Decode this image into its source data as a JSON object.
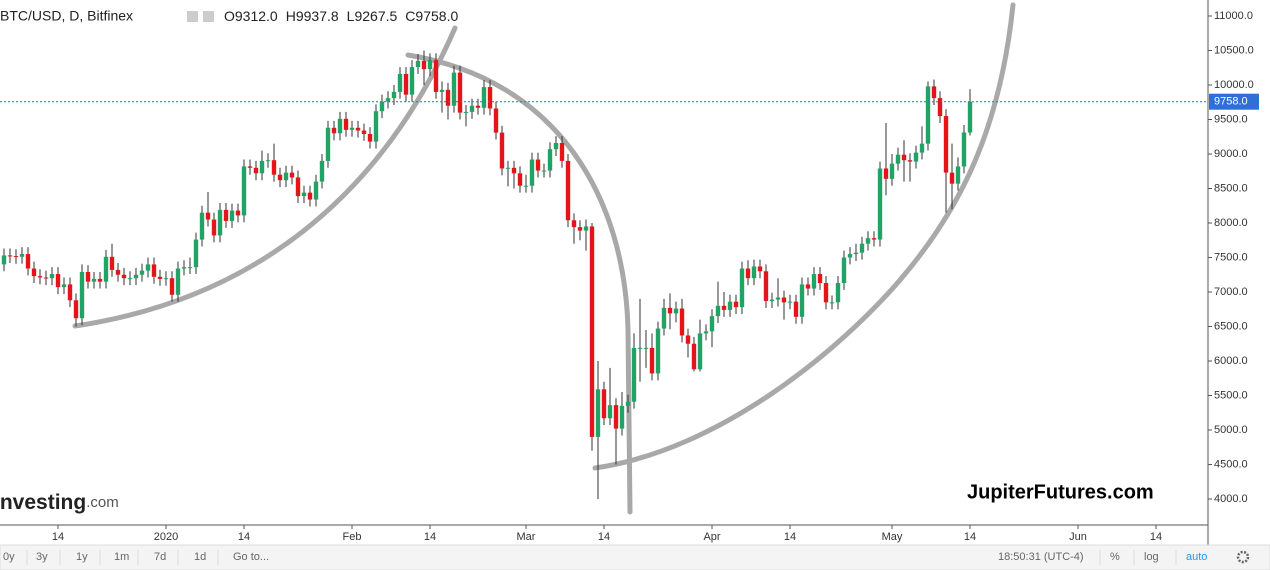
{
  "chart_data": {
    "type": "candlestick",
    "title": "BTC/USD, D, Bitfinex",
    "legend": [
      {
        "key": "O",
        "label": "9312.0"
      },
      {
        "key": "H",
        "label": "9937.8"
      },
      {
        "key": "L",
        "label": "9267.5"
      },
      {
        "key": "C",
        "label": "9758.0"
      }
    ],
    "up_color": "#21a366",
    "down_color": "#e3151a",
    "x": [
      "2019-12-05",
      "2019-12-06",
      "2019-12-07",
      "2019-12-08",
      "2019-12-09",
      "2019-12-10",
      "2019-12-11",
      "2019-12-12",
      "2019-12-13",
      "2019-12-14",
      "2019-12-15",
      "2019-12-16",
      "2019-12-17",
      "2019-12-18",
      "2019-12-19",
      "2019-12-20",
      "2019-12-21",
      "2019-12-22",
      "2019-12-23",
      "2019-12-24",
      "2019-12-25",
      "2019-12-26",
      "2019-12-27",
      "2019-12-28",
      "2019-12-29",
      "2019-12-30",
      "2019-12-31",
      "2020-01-01",
      "2020-01-02",
      "2020-01-03",
      "2020-01-04",
      "2020-01-05",
      "2020-01-06",
      "2020-01-07",
      "2020-01-08",
      "2020-01-09",
      "2020-01-10",
      "2020-01-11",
      "2020-01-12",
      "2020-01-13",
      "2020-01-14",
      "2020-01-15",
      "2020-01-16",
      "2020-01-17",
      "2020-01-18",
      "2020-01-19",
      "2020-01-20",
      "2020-01-21",
      "2020-01-22",
      "2020-01-23",
      "2020-01-24",
      "2020-01-25",
      "2020-01-26",
      "2020-01-27",
      "2020-01-28",
      "2020-01-29",
      "2020-01-30",
      "2020-01-31",
      "2020-02-01",
      "2020-02-02",
      "2020-02-03",
      "2020-02-04",
      "2020-02-05",
      "2020-02-06",
      "2020-02-07",
      "2020-02-08",
      "2020-02-09",
      "2020-02-10",
      "2020-02-11",
      "2020-02-12",
      "2020-02-13",
      "2020-02-14",
      "2020-02-15",
      "2020-02-16",
      "2020-02-17",
      "2020-02-18",
      "2020-02-19",
      "2020-02-20",
      "2020-02-21",
      "2020-02-22",
      "2020-02-23",
      "2020-02-24",
      "2020-02-25",
      "2020-02-26",
      "2020-02-27",
      "2020-02-28",
      "2020-02-29",
      "2020-03-01",
      "2020-03-02",
      "2020-03-03",
      "2020-03-04",
      "2020-03-05",
      "2020-03-06",
      "2020-03-07",
      "2020-03-08",
      "2020-03-09",
      "2020-03-10",
      "2020-03-11",
      "2020-03-12",
      "2020-03-13",
      "2020-03-14",
      "2020-03-15",
      "2020-03-16",
      "2020-03-17",
      "2020-03-18",
      "2020-03-19",
      "2020-03-20",
      "2020-03-21",
      "2020-03-22",
      "2020-03-23",
      "2020-03-24",
      "2020-03-25",
      "2020-03-26",
      "2020-03-27",
      "2020-03-28",
      "2020-03-29",
      "2020-03-30",
      "2020-03-31",
      "2020-04-01",
      "2020-04-02",
      "2020-04-03",
      "2020-04-04",
      "2020-04-05",
      "2020-04-06",
      "2020-04-07",
      "2020-04-08",
      "2020-04-09",
      "2020-04-10",
      "2020-04-11",
      "2020-04-12",
      "2020-04-13",
      "2020-04-14",
      "2020-04-15",
      "2020-04-16",
      "2020-04-17",
      "2020-04-18",
      "2020-04-19",
      "2020-04-20",
      "2020-04-21",
      "2020-04-22",
      "2020-04-23",
      "2020-04-24",
      "2020-04-25",
      "2020-04-26",
      "2020-04-27",
      "2020-04-28",
      "2020-04-29",
      "2020-04-30",
      "2020-05-01",
      "2020-05-02",
      "2020-05-03",
      "2020-05-04",
      "2020-05-05",
      "2020-05-06",
      "2020-05-07",
      "2020-05-08",
      "2020-05-09",
      "2020-05-10",
      "2020-05-11",
      "2020-05-12",
      "2020-05-13",
      "2020-05-14"
    ],
    "open": [
      7400,
      7530,
      7520,
      7510,
      7550,
      7340,
      7230,
      7210,
      7200,
      7260,
      7070,
      7110,
      6880,
      6620,
      7290,
      7150,
      7190,
      7150,
      7510,
      7320,
      7250,
      7200,
      7200,
      7250,
      7310,
      7400,
      7220,
      7190,
      7200,
      6960,
      7340,
      7360,
      7360,
      7760,
      8150,
      8050,
      7820,
      8190,
      8030,
      8180,
      8110,
      8820,
      8800,
      8720,
      8900,
      8910,
      8700,
      8620,
      8730,
      8660,
      8390,
      8440,
      8340,
      8600,
      8900,
      9380,
      9300,
      9510,
      9350,
      9380,
      9340,
      9290,
      9180,
      9620,
      9760,
      9810,
      9900,
      10160,
      9860,
      10260,
      10350,
      10230,
      10360,
      9900,
      9930,
      9700,
      10180,
      9600,
      9610,
      9700,
      9670,
      9970,
      9660,
      9310,
      8790,
      8800,
      8720,
      8540,
      8540,
      8920,
      8760,
      8760,
      9070,
      9160,
      8900,
      8040,
      7940,
      7890,
      7950,
      4900,
      5590,
      5170,
      5360,
      5020,
      5350,
      5410,
      6190,
      6190,
      6190,
      5820,
      6470,
      6770,
      6690,
      6760,
      6370,
      6250,
      5880,
      6400,
      6430,
      6650,
      6800,
      6740,
      6860,
      6780,
      7340,
      7200,
      7370,
      7300,
      6870,
      6890,
      6920,
      6850,
      6860,
      6640,
      7110,
      7050,
      7260,
      7130,
      6850,
      6850,
      7130,
      7500,
      7550,
      7570,
      7700,
      7780,
      7760,
      8790,
      8640,
      8860,
      8990,
      8910,
      8890,
      9020,
      9150,
      9980,
      9810,
      9550,
      8730,
      8570,
      8820,
      9312
    ],
    "high": [
      7630,
      7630,
      7620,
      7650,
      7650,
      7440,
      7330,
      7310,
      7360,
      7360,
      7210,
      7210,
      6980,
      7400,
      7390,
      7290,
      7290,
      7610,
      7700,
      7420,
      7350,
      7300,
      7350,
      7410,
      7500,
      7500,
      7320,
      7300,
      7300,
      7440,
      7460,
      7500,
      7860,
      8250,
      8450,
      8150,
      8290,
      8290,
      8280,
      8280,
      8920,
      8920,
      8900,
      9050,
      9010,
      9150,
      8800,
      8830,
      8830,
      8760,
      8540,
      8540,
      8700,
      9000,
      9480,
      9480,
      9610,
      9610,
      9480,
      9480,
      9440,
      9390,
      9720,
      9860,
      9910,
      10000,
      10260,
      10260,
      10360,
      10450,
      10500,
      10460,
      10460,
      10050,
      10030,
      10280,
      10280,
      9710,
      9800,
      9800,
      10070,
      10070,
      9760,
      9410,
      8900,
      8900,
      8820,
      8700,
      9020,
      9020,
      8860,
      9170,
      9260,
      9260,
      9000,
      8140,
      8040,
      8050,
      8000,
      6000,
      5700,
      5900,
      5460,
      5550,
      5510,
      6400,
      6900,
      6450,
      6400,
      6570,
      6900,
      6980,
      6860,
      6900,
      6470,
      6350,
      6600,
      6530,
      6750,
      7150,
      7000,
      6960,
      6960,
      7440,
      7460,
      7470,
      7470,
      7400,
      6990,
      7200,
      7020,
      6960,
      6960,
      7210,
      7210,
      7360,
      7360,
      7230,
      6950,
      7230,
      7600,
      7650,
      7700,
      7800,
      7880,
      7880,
      8890,
      9450,
      9000,
      9090,
      9200,
      9010,
      9120,
      9400,
      10050,
      10080,
      9910,
      9650,
      9150,
      8950,
      9420,
      9937.8
    ],
    "low": [
      7300,
      7420,
      7410,
      7410,
      7240,
      7130,
      7110,
      7100,
      7100,
      6970,
      6970,
      6780,
      6500,
      6520,
      7050,
      7050,
      7050,
      7050,
      7220,
      7150,
      7100,
      7100,
      7100,
      7150,
      7210,
      7120,
      7090,
      7090,
      6860,
      6860,
      7240,
      7260,
      7260,
      7660,
      7950,
      7720,
      7720,
      7930,
      7930,
      8010,
      8010,
      8700,
      8620,
      8620,
      8800,
      8600,
      8520,
      8520,
      8560,
      8290,
      8290,
      8240,
      8240,
      8500,
      8800,
      9200,
      9200,
      9250,
      9250,
      9240,
      9190,
      9080,
      9080,
      9520,
      9660,
      9710,
      9800,
      9760,
      9760,
      10160,
      10000,
      10130,
      9800,
      9600,
      9500,
      9600,
      9500,
      9400,
      9510,
      9570,
      9570,
      9560,
      9210,
      8690,
      8530,
      8500,
      8440,
      8440,
      8440,
      8660,
      8660,
      8660,
      8970,
      8800,
      7940,
      7700,
      7750,
      7600,
      4700,
      4000,
      5070,
      5070,
      4500,
      4920,
      5250,
      5310,
      5700,
      5900,
      5720,
      5720,
      6370,
      6460,
      6560,
      6270,
      6050,
      5850,
      5850,
      6300,
      6200,
      6550,
      6640,
      6640,
      6680,
      6680,
      7100,
      7100,
      7200,
      6770,
      6770,
      6790,
      6600,
      6750,
      6540,
      6540,
      6950,
      6950,
      7030,
      6750,
      6750,
      6750,
      7030,
      7400,
      7450,
      7470,
      7600,
      7660,
      7660,
      8400,
      8540,
      8760,
      8600,
      8600,
      8790,
      8920,
      9050,
      9710,
      9450,
      8150,
      8200,
      8470,
      8720,
      9267.5
    ],
    "close": [
      7530,
      7520,
      7510,
      7550,
      7340,
      7230,
      7210,
      7200,
      7260,
      7070,
      7110,
      6880,
      6620,
      7290,
      7150,
      7190,
      7150,
      7510,
      7320,
      7250,
      7200,
      7200,
      7250,
      7310,
      7400,
      7220,
      7190,
      7200,
      6960,
      7340,
      7360,
      7360,
      7760,
      8150,
      8050,
      7820,
      8190,
      8030,
      8180,
      8110,
      8820,
      8800,
      8720,
      8900,
      8910,
      8700,
      8620,
      8730,
      8660,
      8390,
      8440,
      8340,
      8600,
      8900,
      9380,
      9300,
      9510,
      9350,
      9380,
      9340,
      9290,
      9180,
      9620,
      9760,
      9810,
      9900,
      10160,
      9860,
      10260,
      10350,
      10230,
      10360,
      9900,
      9930,
      9700,
      10180,
      9600,
      9610,
      9700,
      9670,
      9970,
      9660,
      9310,
      8790,
      8800,
      8720,
      8540,
      8540,
      8920,
      8760,
      8760,
      9070,
      9160,
      8900,
      8040,
      7940,
      7890,
      7950,
      4900,
      5590,
      5170,
      5360,
      5020,
      5350,
      5410,
      6190,
      6190,
      6190,
      5820,
      6470,
      6770,
      6690,
      6760,
      6370,
      6250,
      5880,
      6400,
      6430,
      6650,
      6800,
      6740,
      6860,
      6780,
      7340,
      7200,
      7370,
      7300,
      6870,
      6890,
      6920,
      6850,
      6860,
      6640,
      7110,
      7050,
      7260,
      7130,
      6850,
      6850,
      7130,
      7500,
      7550,
      7570,
      7700,
      7780,
      7760,
      8790,
      8640,
      8860,
      8990,
      8910,
      8890,
      9020,
      9150,
      9980,
      9810,
      9550,
      8730,
      8570,
      8820,
      9312,
      9758
    ],
    "current_price": {
      "value": 9758,
      "label": "9758.0"
    },
    "ylim": [
      3623,
      11232
    ],
    "yticks": [
      {
        "value": 4000,
        "label": "4000.0"
      },
      {
        "value": 4500,
        "label": "4500.0"
      },
      {
        "value": 5000,
        "label": "5000.0"
      },
      {
        "value": 5500,
        "label": "5500.0"
      },
      {
        "value": 6000,
        "label": "6000.0"
      },
      {
        "value": 6500,
        "label": "6500.0"
      },
      {
        "value": 7000,
        "label": "7000.0"
      },
      {
        "value": 7500,
        "label": "7500.0"
      },
      {
        "value": 8000,
        "label": "8000.0"
      },
      {
        "value": 8500,
        "label": "8500.0"
      },
      {
        "value": 9000,
        "label": "9000.0"
      },
      {
        "value": 9500,
        "label": "9500.0"
      },
      {
        "value": 10000,
        "label": "10000.0"
      },
      {
        "value": 10500,
        "label": "10500.0"
      },
      {
        "value": 11000,
        "label": "11000.0"
      }
    ],
    "xticks": [
      {
        "value": "2019-12-14",
        "label": "14"
      },
      {
        "value": "2020-01-01",
        "label": "2020"
      },
      {
        "value": "2020-01-14",
        "label": "14"
      },
      {
        "value": "2020-02-01",
        "label": "Feb"
      },
      {
        "value": "2020-02-14",
        "label": "14"
      },
      {
        "value": "2020-03-01",
        "label": "Mar"
      },
      {
        "value": "2020-03-14",
        "label": "14"
      },
      {
        "value": "2020-04-01",
        "label": "Apr"
      },
      {
        "value": "2020-04-14",
        "label": "14"
      },
      {
        "value": "2020-05-01",
        "label": "May"
      },
      {
        "value": "2020-05-14",
        "label": "14"
      },
      {
        "value": "2020-06-01",
        "label": "Jun"
      },
      {
        "value": "2020-06-14",
        "label": "14"
      }
    ],
    "grid": false,
    "watermark": {
      "brand": "Investing",
      "suffix": ".com"
    },
    "annotation": "JupiterFutures.com"
  },
  "toolbar": {
    "ranges": [
      "0y",
      "3y",
      "1y",
      "1m",
      "7d",
      "1d"
    ],
    "goto": "Go to...",
    "time": "18:50:31 (UTC-4)",
    "options": [
      "%",
      "log",
      "auto"
    ]
  }
}
